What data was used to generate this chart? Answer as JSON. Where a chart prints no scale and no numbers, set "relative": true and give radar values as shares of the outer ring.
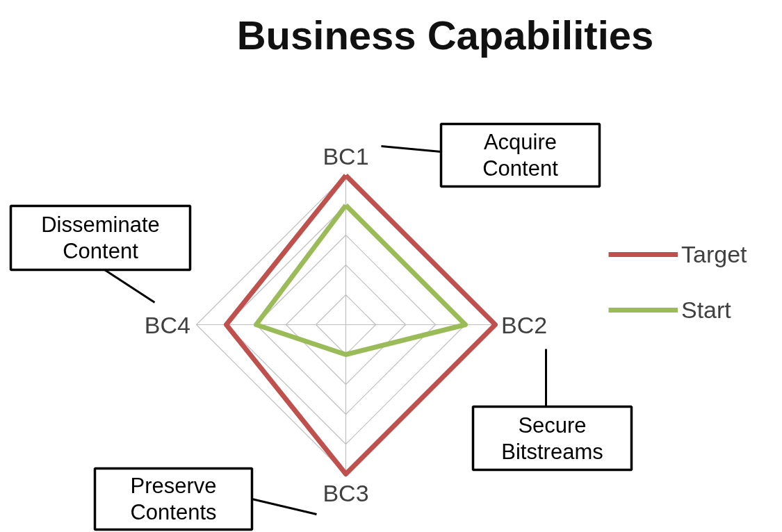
{
  "chart_data": {
    "type": "radar",
    "title": "Business Capabilities",
    "relative": true,
    "categories": [
      "BC1",
      "BC2",
      "BC3",
      "BC4"
    ],
    "series": [
      {
        "name": "Target",
        "color": "#c0504d",
        "values": [
          1,
          1,
          1,
          0.8
        ]
      },
      {
        "name": "Start",
        "color": "#9bbb59",
        "values": [
          0.8,
          0.8,
          0.2,
          0.6
        ]
      }
    ],
    "annotations": [
      "Acquire\nContent",
      "Secure\nBitstreams",
      "Preserve\nContents",
      "Disseminate\nContent"
    ],
    "grid": true,
    "legend": "right",
    "line_style": "solid"
  }
}
